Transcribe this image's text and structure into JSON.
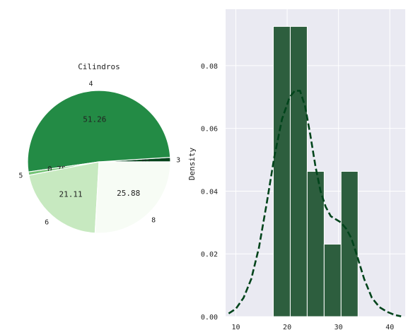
{
  "chart_data": [
    {
      "type": "pie",
      "title": "Cilindros",
      "slices": [
        {
          "label": "3",
          "value": 1.01,
          "value_label": "1.01",
          "color": "#00441b"
        },
        {
          "label": "4",
          "value": 51.26,
          "value_label": "51.26",
          "color": "#238b45"
        },
        {
          "label": "5",
          "value": 0.75,
          "value_label": "0.75",
          "color": "#74c476"
        },
        {
          "label": "6",
          "value": 21.11,
          "value_label": "21.11",
          "color": "#c7e9c0"
        },
        {
          "label": "8",
          "value": 25.88,
          "value_label": "25.88",
          "color": "#f7fcf5"
        }
      ]
    },
    {
      "type": "histogram",
      "xlabel": "",
      "ylabel": "Density",
      "xlim": [
        8,
        43
      ],
      "ylim": [
        0,
        0.098
      ],
      "xticks": [
        "10",
        "20",
        "30",
        "40"
      ],
      "yticks": [
        "0.00",
        "0.02",
        "0.04",
        "0.06",
        "0.08"
      ],
      "bar_color": "#2d5e3e",
      "bins": [
        {
          "x0": 17.3,
          "x1": 20.6,
          "density": 0.0925
        },
        {
          "x0": 20.6,
          "x1": 23.9,
          "density": 0.0925
        },
        {
          "x0": 23.9,
          "x1": 27.2,
          "density": 0.0463
        },
        {
          "x0": 27.2,
          "x1": 30.5,
          "density": 0.0231
        },
        {
          "x0": 30.5,
          "x1": 33.8,
          "density": 0.0463
        }
      ],
      "kde": {
        "color": "#00441b",
        "style": "dashed",
        "points": [
          [
            8.6,
            0.001
          ],
          [
            10,
            0.0025
          ],
          [
            11.5,
            0.006
          ],
          [
            13,
            0.012
          ],
          [
            14.5,
            0.022
          ],
          [
            16,
            0.036
          ],
          [
            17.5,
            0.051
          ],
          [
            19,
            0.063
          ],
          [
            20.5,
            0.07
          ],
          [
            21.5,
            0.072
          ],
          [
            22.5,
            0.072
          ],
          [
            23.5,
            0.067
          ],
          [
            24.5,
            0.058
          ],
          [
            25.5,
            0.048
          ],
          [
            26.5,
            0.04
          ],
          [
            27.5,
            0.035
          ],
          [
            28.5,
            0.032
          ],
          [
            29.5,
            0.031
          ],
          [
            30.5,
            0.03
          ],
          [
            31.5,
            0.028
          ],
          [
            32.5,
            0.025
          ],
          [
            33.5,
            0.02
          ],
          [
            35,
            0.012
          ],
          [
            36.5,
            0.006
          ],
          [
            38,
            0.003
          ],
          [
            39.5,
            0.0015
          ],
          [
            41,
            0.0005
          ],
          [
            42.2,
            0.0001
          ]
        ]
      },
      "grid": true
    }
  ]
}
